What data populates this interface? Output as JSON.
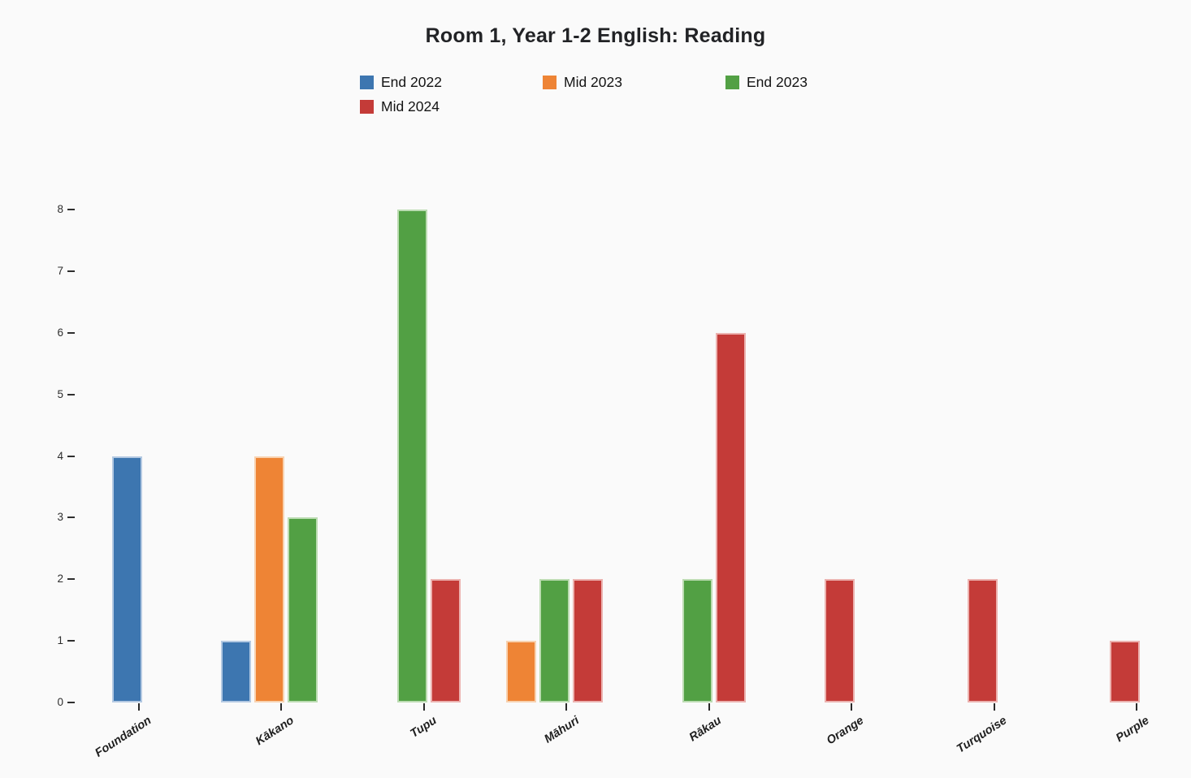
{
  "page": {
    "background": "#fafafa"
  },
  "chart_data": {
    "type": "bar",
    "title": "Room 1, Year 1-2 English: Reading",
    "categories": [
      "Foundation",
      "Kākano",
      "Tupu",
      "Māhuri",
      "Rākau",
      "Orange",
      "Turquoise",
      "Purple"
    ],
    "series": [
      {
        "name": "End 2022",
        "color": "#3d76b0",
        "border_color": "#b3c9e2",
        "values": [
          4,
          1,
          0,
          0,
          0,
          0,
          0,
          0
        ]
      },
      {
        "name": "Mid 2023",
        "color": "#ee8435",
        "border_color": "#f8d2b0",
        "values": [
          0,
          4,
          0,
          1,
          0,
          0,
          0,
          0
        ]
      },
      {
        "name": "End 2023",
        "color": "#52a044",
        "border_color": "#bcdcb2",
        "values": [
          0,
          3,
          8,
          2,
          2,
          0,
          0,
          0
        ]
      },
      {
        "name": "Mid 2024",
        "color": "#c43b38",
        "border_color": "#ecb2af",
        "values": [
          0,
          0,
          2,
          2,
          6,
          2,
          2,
          1
        ]
      }
    ],
    "ylim": [
      0,
      8
    ],
    "yticks": [
      0,
      1,
      2,
      3,
      4,
      5,
      6,
      7,
      8
    ],
    "xlabel": "",
    "ylabel": "",
    "grid": false,
    "legend_position": "top",
    "legend_columns": 3
  }
}
